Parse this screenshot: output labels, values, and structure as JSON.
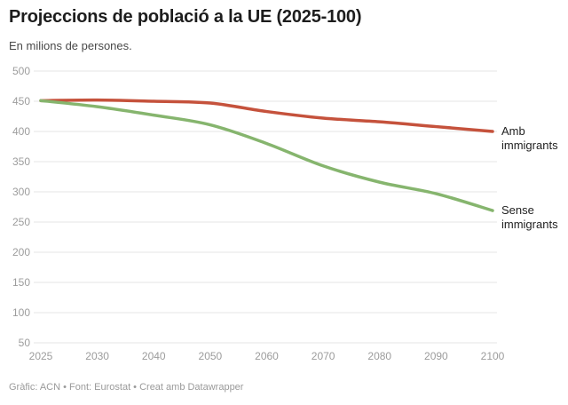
{
  "header": {
    "title": "Projeccions de població a la UE (2025-100)",
    "subtitle": "En milions de persones."
  },
  "chart_data": {
    "type": "line",
    "title": "Projeccions de població a la UE (2025-100)",
    "subtitle": "En milions de persones.",
    "x_labels": [
      "2025",
      "2030",
      "2040",
      "2050",
      "2060",
      "2070",
      "2080",
      "2090",
      "2100"
    ],
    "series": [
      {
        "name": "Amb immigrants",
        "color": "#c5523c",
        "values": [
          451,
          452,
          450,
          447,
          433,
          422,
          416,
          408,
          400
        ]
      },
      {
        "name": "Sense immigrants",
        "color": "#86b56e",
        "values": [
          451,
          441,
          427,
          411,
          380,
          343,
          316,
          297,
          269
        ]
      }
    ],
    "ylim": [
      50,
      500
    ],
    "ytick_step": 50,
    "y_ticks": [
      "500",
      "450",
      "400",
      "350",
      "300",
      "250",
      "200",
      "150",
      "100",
      "50"
    ],
    "xlabel": "",
    "ylabel": "En milions de persones",
    "grid": true,
    "legend_position": "right-end-labels",
    "colors": {
      "grid": "#e4e4e4",
      "tick_text": "#9c9c9c"
    }
  },
  "footer": {
    "attribution": "Gràfic: ACN • Font: Eurostat • Creat amb Datawrapper"
  }
}
